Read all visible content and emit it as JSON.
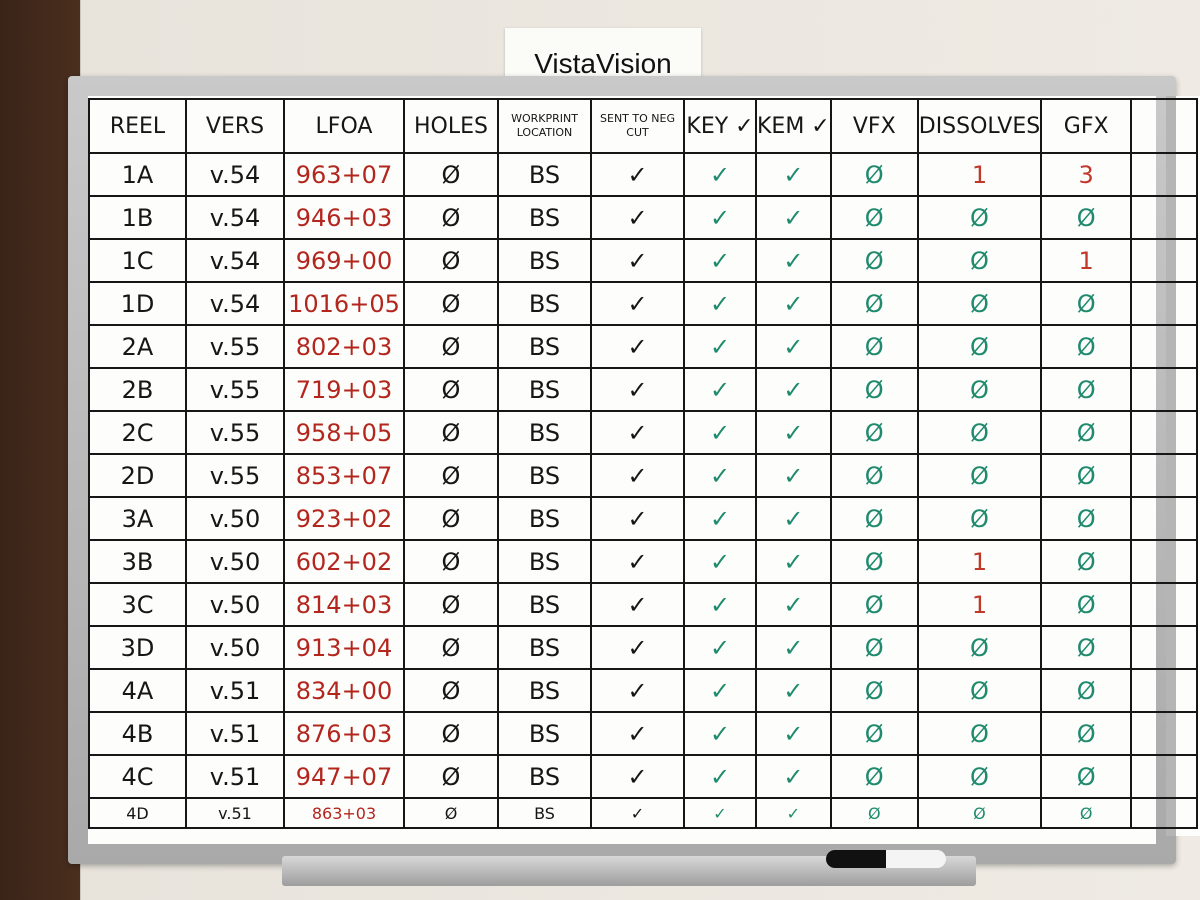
{
  "label": "VistaVision",
  "table": {
    "headers": [
      "REEL",
      "VERS",
      "LFOA",
      "HOLES",
      "WORKPRINT LOCATION",
      "SENT TO NEG CUT",
      "KEY ✓",
      "KEM ✓",
      "VFX",
      "DISSOLVES",
      "GFX"
    ],
    "rows": [
      [
        "1A",
        "v.54",
        "963+07",
        "Ø",
        "BS",
        "✓",
        "✓",
        "✓",
        "Ø",
        "1",
        "3"
      ],
      [
        "1B",
        "v.54",
        "946+03",
        "Ø",
        "BS",
        "✓",
        "✓",
        "✓",
        "Ø",
        "Ø",
        "Ø"
      ],
      [
        "1C",
        "v.54",
        "969+00",
        "Ø",
        "BS",
        "✓",
        "✓",
        "✓",
        "Ø",
        "Ø",
        "1"
      ],
      [
        "1D",
        "v.54",
        "1016+05",
        "Ø",
        "BS",
        "✓",
        "✓",
        "✓",
        "Ø",
        "Ø",
        "Ø"
      ],
      [
        "2A",
        "v.55",
        "802+03",
        "Ø",
        "BS",
        "✓",
        "✓",
        "✓",
        "Ø",
        "Ø",
        "Ø"
      ],
      [
        "2B",
        "v.55",
        "719+03",
        "Ø",
        "BS",
        "✓",
        "✓",
        "✓",
        "Ø",
        "Ø",
        "Ø"
      ],
      [
        "2C",
        "v.55",
        "958+05",
        "Ø",
        "BS",
        "✓",
        "✓",
        "✓",
        "Ø",
        "Ø",
        "Ø"
      ],
      [
        "2D",
        "v.55",
        "853+07",
        "Ø",
        "BS",
        "✓",
        "✓",
        "✓",
        "Ø",
        "Ø",
        "Ø"
      ],
      [
        "3A",
        "v.50",
        "923+02",
        "Ø",
        "BS",
        "✓",
        "✓",
        "✓",
        "Ø",
        "Ø",
        "Ø"
      ],
      [
        "3B",
        "v.50",
        "602+02",
        "Ø",
        "BS",
        "✓",
        "✓",
        "✓",
        "Ø",
        "1",
        "Ø"
      ],
      [
        "3C",
        "v.50",
        "814+03",
        "Ø",
        "BS",
        "✓",
        "✓",
        "✓",
        "Ø",
        "1",
        "Ø"
      ],
      [
        "3D",
        "v.50",
        "913+04",
        "Ø",
        "BS",
        "✓",
        "✓",
        "✓",
        "Ø",
        "Ø",
        "Ø"
      ],
      [
        "4A",
        "v.51",
        "834+00",
        "Ø",
        "BS",
        "✓",
        "✓",
        "✓",
        "Ø",
        "Ø",
        "Ø"
      ],
      [
        "4B",
        "v.51",
        "876+03",
        "Ø",
        "BS",
        "✓",
        "✓",
        "✓",
        "Ø",
        "Ø",
        "Ø"
      ],
      [
        "4C",
        "v.51",
        "947+07",
        "Ø",
        "BS",
        "✓",
        "✓",
        "✓",
        "Ø",
        "Ø",
        "Ø"
      ],
      [
        "4D",
        "v.51",
        "863+03",
        "Ø",
        "BS",
        "✓",
        "✓",
        "✓",
        "Ø",
        "Ø",
        "Ø"
      ]
    ]
  }
}
